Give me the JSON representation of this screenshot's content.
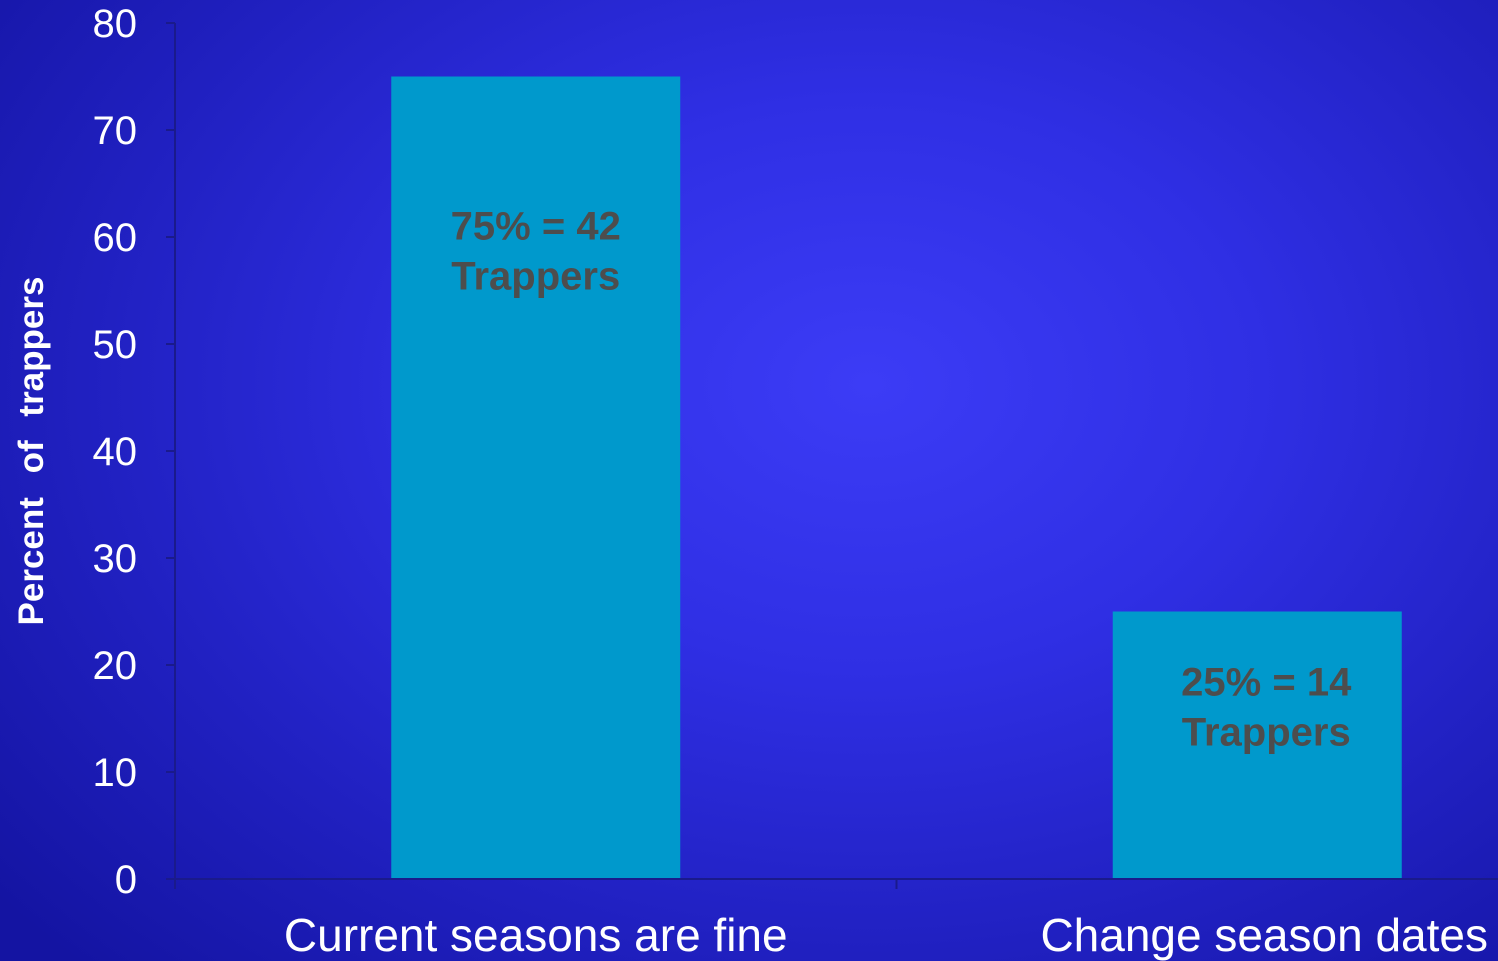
{
  "chart_data": {
    "type": "bar",
    "title": "",
    "xlabel": "",
    "ylabel": "Percent of trappers",
    "ylim": [
      0,
      80
    ],
    "yticks": [
      0,
      10,
      20,
      30,
      40,
      50,
      60,
      70,
      80
    ],
    "categories": [
      "Current seasons are fine",
      "Change season dates"
    ],
    "values": [
      75,
      25
    ],
    "data_labels": [
      [
        "75% = 42",
        "Trappers"
      ],
      [
        "25% = 14",
        "Trappers"
      ]
    ],
    "bar_color": "#0099cc",
    "axis_color": "#1a1a8c",
    "grid": false,
    "legend": "none"
  }
}
